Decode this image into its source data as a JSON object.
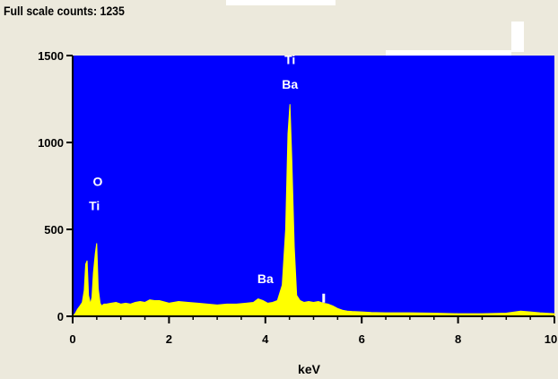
{
  "header": {
    "full_scale_text": "Full scale counts: 1235"
  },
  "colors": {
    "background": "#ece9dc",
    "plot_background": "#0000ff",
    "spectrum": "#ffff00",
    "peak_label": "#ffffff",
    "axis": "#000000"
  },
  "chart_data": {
    "type": "area",
    "xlabel": "keV",
    "ylabel": "",
    "xlim": [
      0,
      10
    ],
    "ylim": [
      0,
      1500
    ],
    "x_ticks": [
      0,
      2,
      4,
      6,
      8,
      10
    ],
    "x_tick_labels": [
      "0",
      "2",
      "4",
      "6",
      "8",
      "10"
    ],
    "y_ticks": [
      0,
      500,
      1000,
      1500
    ],
    "y_tick_labels": [
      "0",
      "500",
      "1000",
      "1500"
    ],
    "grid": false,
    "legend": "none",
    "series": [
      {
        "x": [
          0.0,
          0.05,
          0.1,
          0.15,
          0.2,
          0.24,
          0.27,
          0.3,
          0.33,
          0.37,
          0.4,
          0.43,
          0.47,
          0.5,
          0.53,
          0.57,
          0.6,
          0.65,
          0.7,
          0.8,
          0.9,
          1.0,
          1.1,
          1.2,
          1.3,
          1.4,
          1.5,
          1.6,
          1.7,
          1.8,
          2.0,
          2.2,
          2.4,
          2.6,
          2.8,
          3.0,
          3.2,
          3.4,
          3.6,
          3.75,
          3.85,
          3.95,
          4.05,
          4.15,
          4.25,
          4.35,
          4.42,
          4.47,
          4.51,
          4.55,
          4.6,
          4.65,
          4.72,
          4.8,
          4.9,
          5.0,
          5.1,
          5.2,
          5.3,
          5.4,
          5.5,
          5.6,
          5.7,
          5.8,
          6.0,
          6.2,
          6.5,
          7.0,
          7.5,
          8.0,
          8.5,
          9.0,
          9.3,
          9.5,
          9.7,
          10.0
        ],
        "y": [
          0,
          15,
          40,
          60,
          80,
          150,
          300,
          320,
          120,
          70,
          110,
          250,
          360,
          420,
          160,
          75,
          60,
          70,
          70,
          75,
          80,
          70,
          75,
          70,
          80,
          85,
          80,
          95,
          90,
          90,
          75,
          85,
          80,
          75,
          70,
          65,
          70,
          70,
          75,
          80,
          100,
          90,
          75,
          80,
          90,
          180,
          500,
          1050,
          1220,
          900,
          400,
          120,
          90,
          80,
          85,
          80,
          85,
          75,
          70,
          60,
          45,
          35,
          30,
          28,
          25,
          22,
          20,
          20,
          18,
          15,
          15,
          18,
          30,
          25,
          20,
          15
        ]
      }
    ],
    "annotations": [
      {
        "text": "Ti",
        "x": 4.51,
        "y": 1450
      },
      {
        "text": "Ba",
        "x": 4.51,
        "y": 1310
      },
      {
        "text": "O",
        "x": 0.52,
        "y": 750
      },
      {
        "text": "Ti",
        "x": 0.45,
        "y": 610
      },
      {
        "text": "Ba",
        "x": 4.0,
        "y": 190
      }
    ]
  }
}
